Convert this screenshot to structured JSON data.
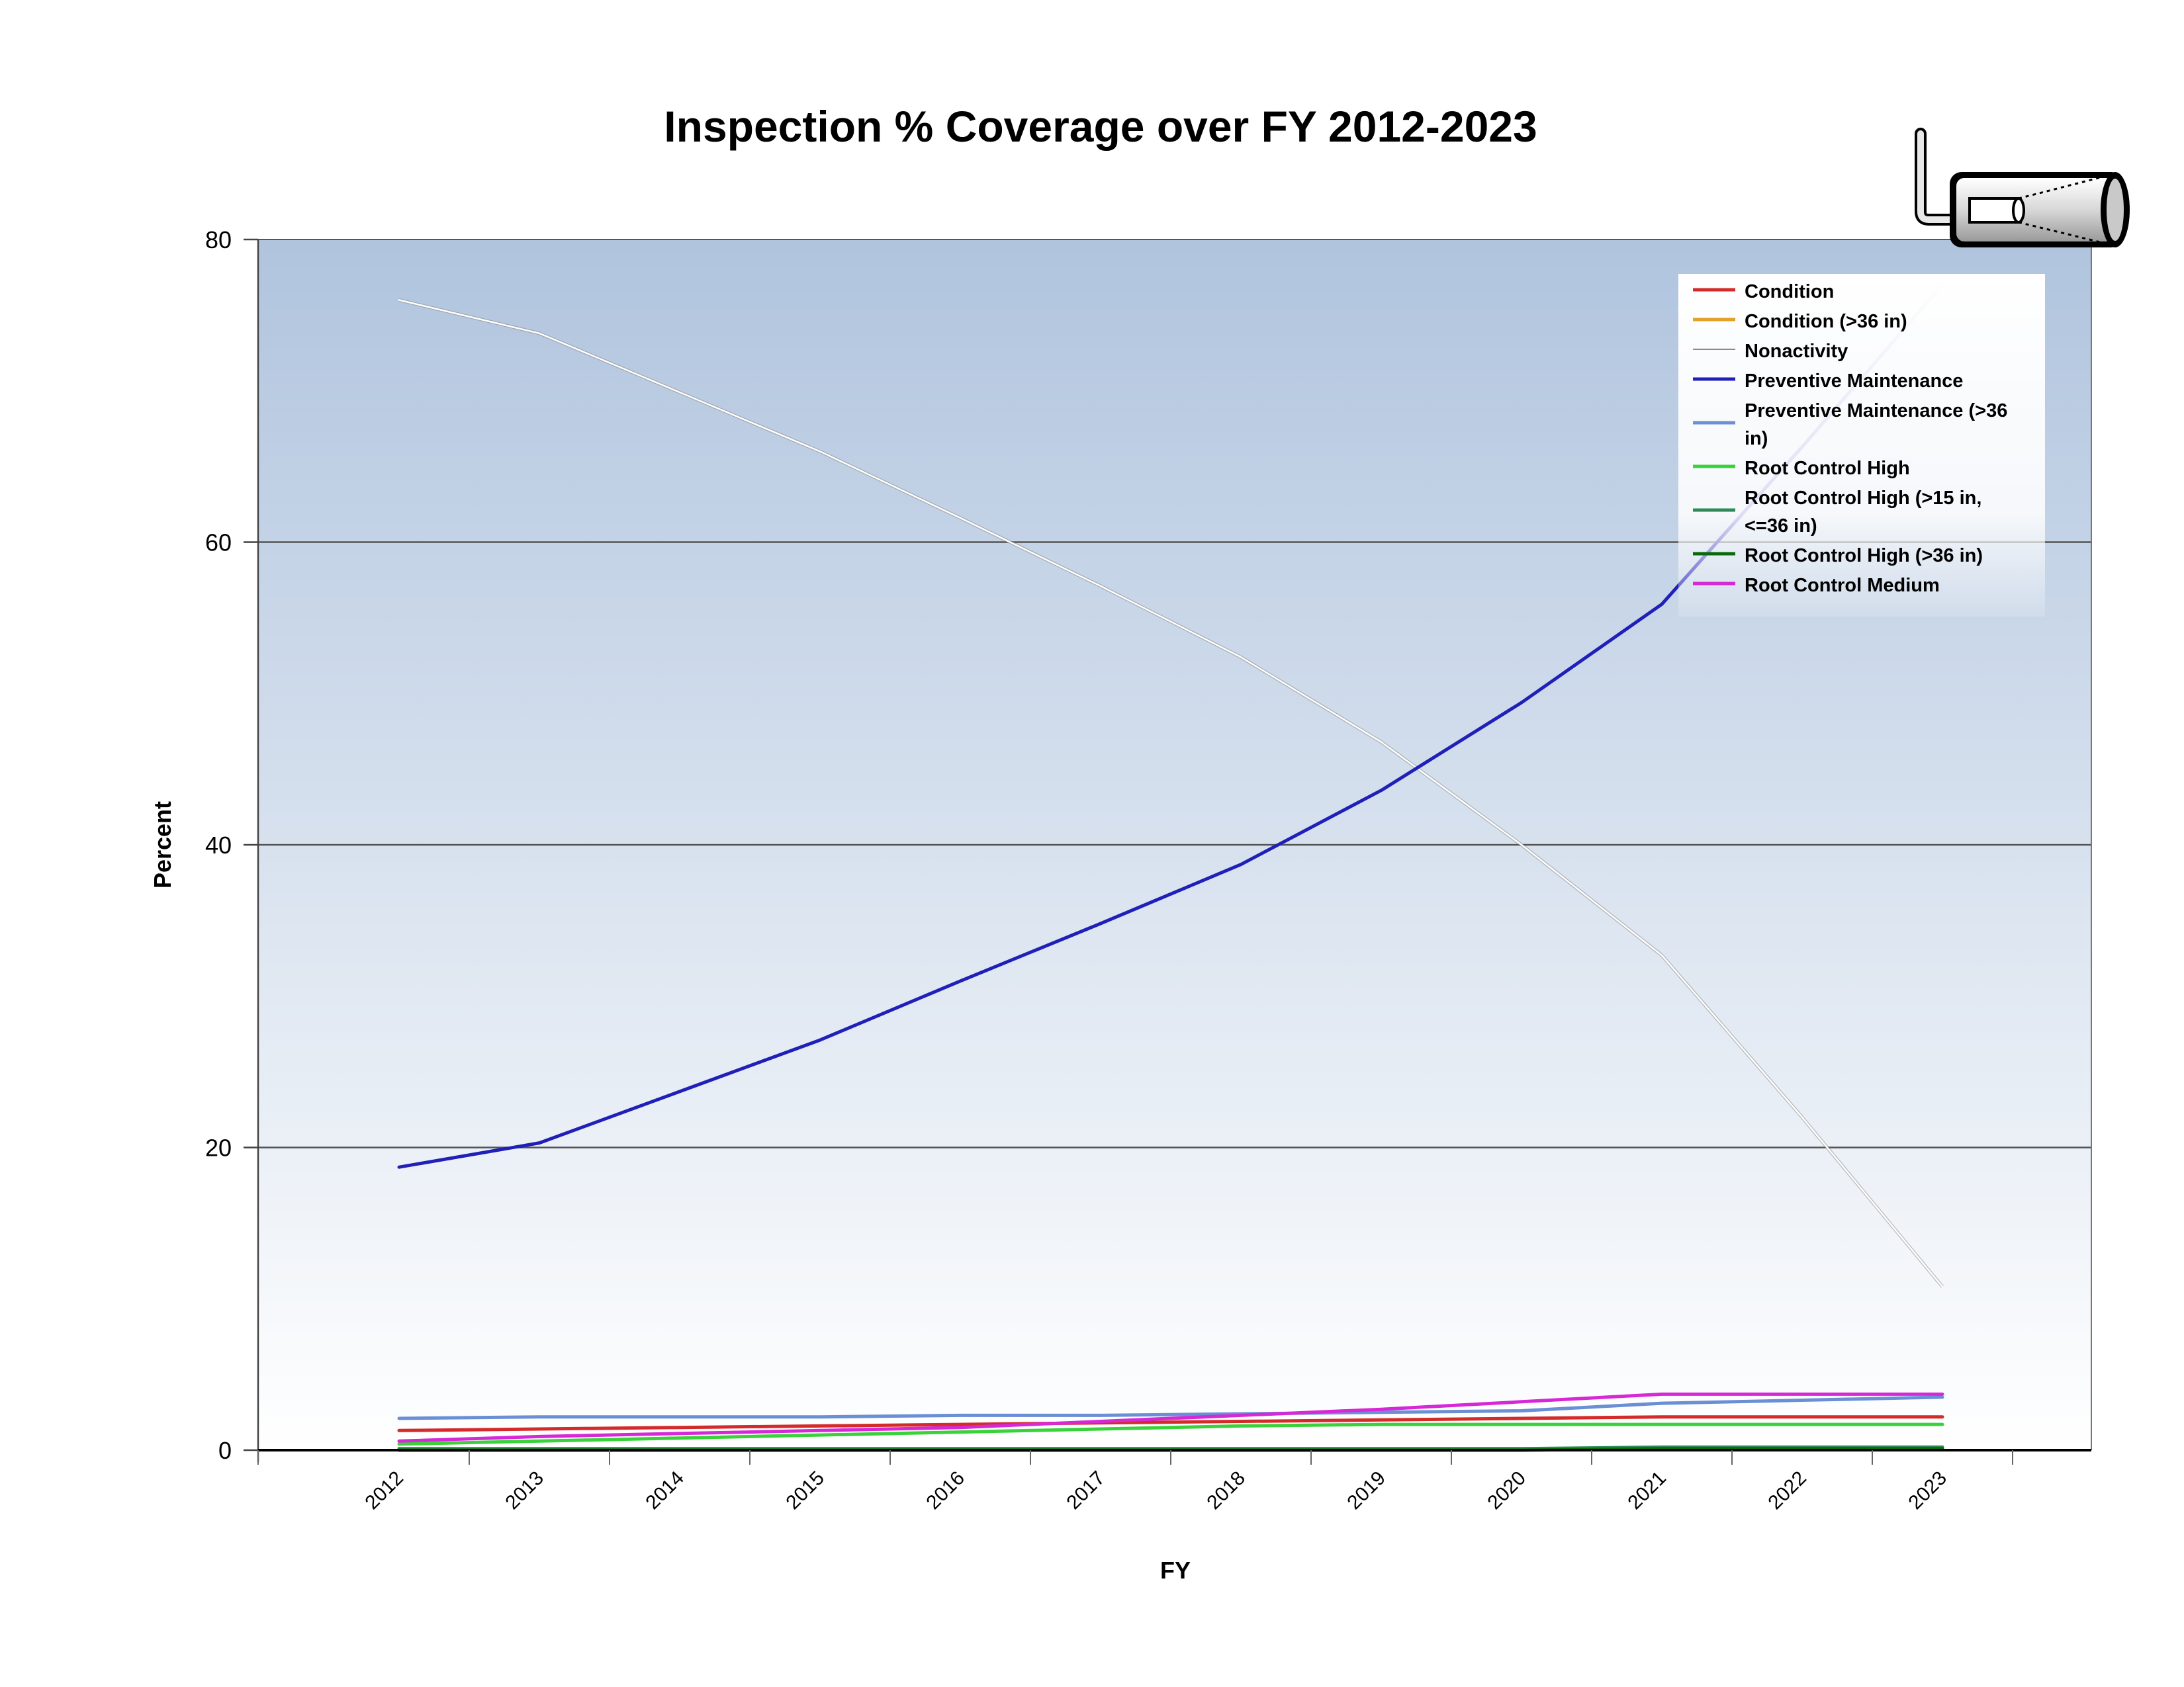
{
  "chart_data": {
    "type": "line",
    "title": "Inspection % Coverage over FY 2012-2023",
    "xlabel": "FY",
    "ylabel": "Percent",
    "x": [
      "2012",
      "2013",
      "2014",
      "2015",
      "2016",
      "2017",
      "2018",
      "2019",
      "2020",
      "2021",
      "2022",
      "2023"
    ],
    "ylim": [
      0,
      80
    ],
    "yticks": [
      "0",
      "20",
      "40",
      "60",
      "80"
    ],
    "grid": true,
    "legend_position": "top-right",
    "series": [
      {
        "name": "Condition",
        "color": "#d42a2a",
        "width": 5,
        "values": [
          1.3,
          1.4,
          1.5,
          1.6,
          1.7,
          1.8,
          1.9,
          2.0,
          2.1,
          2.2,
          2.2,
          2.2
        ]
      },
      {
        "name": "Condition (>36 in)",
        "color": "#e3a02a",
        "width": 5,
        "values": [
          0.1,
          0.1,
          0.1,
          0.1,
          0.1,
          0.1,
          0.1,
          0.1,
          0.1,
          0.1,
          0.1,
          0.1
        ]
      },
      {
        "name": "Nonactivity",
        "color": "#ffffff",
        "width": 2.5,
        "values": [
          76.0,
          73.8,
          69.9,
          66.0,
          61.6,
          57.1,
          52.4,
          46.8,
          40.0,
          32.7,
          22.0,
          10.8
        ]
      },
      {
        "name": "Preventive Maintenance",
        "color": "#2020b8",
        "width": 5,
        "values": [
          18.7,
          20.3,
          23.7,
          27.1,
          31.0,
          34.8,
          38.7,
          43.6,
          49.4,
          55.9,
          66.3,
          77.0
        ]
      },
      {
        "name": "Preventive Maintenance (>36 in)",
        "color": "#6b8fd4",
        "width": 5,
        "values": [
          2.1,
          2.2,
          2.2,
          2.2,
          2.3,
          2.3,
          2.4,
          2.5,
          2.6,
          3.1,
          3.3,
          3.5
        ]
      },
      {
        "name": "Root Control High",
        "color": "#3ad23a",
        "width": 5,
        "values": [
          0.4,
          0.6,
          0.8,
          1.0,
          1.2,
          1.4,
          1.6,
          1.7,
          1.7,
          1.7,
          1.7,
          1.7
        ]
      },
      {
        "name": "Root Control High (>15 in, <=36 in)",
        "color": "#2e8b57",
        "width": 5,
        "values": [
          0.1,
          0.1,
          0.1,
          0.1,
          0.1,
          0.1,
          0.1,
          0.1,
          0.1,
          0.2,
          0.2,
          0.2
        ]
      },
      {
        "name": "Root Control High (>36 in)",
        "color": "#0a6a0a",
        "width": 5,
        "values": [
          0.0,
          0.0,
          0.0,
          0.0,
          0.0,
          0.0,
          0.0,
          0.0,
          0.0,
          0.1,
          0.1,
          0.1
        ]
      },
      {
        "name": "Root Control Medium",
        "color": "#d628d6",
        "width": 5,
        "values": [
          0.6,
          0.9,
          1.1,
          1.3,
          1.5,
          1.9,
          2.3,
          2.7,
          3.2,
          3.7,
          3.7,
          3.7
        ]
      }
    ]
  },
  "logo": {
    "icon": "sewer-camera-icon"
  }
}
